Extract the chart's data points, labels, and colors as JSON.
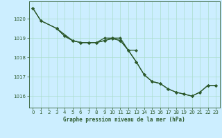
{
  "title": "Graphe pression niveau de la mer (hPa)",
  "background_color": "#cceeff",
  "grid_color": "#aaddcc",
  "line_color": "#2d5a2d",
  "xlim": [
    -0.5,
    23.5
  ],
  "ylim": [
    1015.4,
    1020.9
  ],
  "yticks": [
    1016,
    1017,
    1018,
    1019,
    1020
  ],
  "xticks": [
    0,
    1,
    2,
    3,
    4,
    5,
    6,
    7,
    8,
    9,
    10,
    11,
    12,
    13,
    14,
    15,
    16,
    17,
    18,
    19,
    20,
    21,
    22,
    23
  ],
  "line1_x": [
    0,
    1,
    3,
    4,
    5,
    6,
    7,
    8,
    9,
    10,
    11,
    12,
    13,
    14,
    15,
    16,
    17,
    18,
    19,
    20,
    21,
    22,
    23
  ],
  "line1_y": [
    1020.55,
    1019.9,
    1019.5,
    1019.1,
    1018.87,
    1018.77,
    1018.77,
    1018.77,
    1018.87,
    1018.97,
    1018.87,
    1018.37,
    1017.77,
    1017.1,
    1016.75,
    1016.65,
    1016.37,
    1016.2,
    1016.1,
    1016.0,
    1016.2,
    1016.55,
    1016.55
  ],
  "line2_x": [
    0,
    1,
    3,
    4,
    5,
    6,
    7,
    8,
    9,
    10,
    11,
    12,
    13
  ],
  "line2_y": [
    1020.55,
    1019.9,
    1019.5,
    1019.1,
    1018.87,
    1018.77,
    1018.77,
    1018.77,
    1019.0,
    1019.0,
    1019.0,
    1018.37,
    1018.37
  ],
  "line3_x": [
    3,
    5,
    6,
    7,
    8,
    9,
    10,
    11,
    12,
    13,
    14,
    15,
    16,
    17,
    18,
    19,
    20,
    21,
    22,
    23
  ],
  "line3_y": [
    1019.5,
    1018.87,
    1018.77,
    1018.77,
    1018.77,
    1018.87,
    1019.0,
    1018.87,
    1018.37,
    1017.77,
    1017.1,
    1016.75,
    1016.65,
    1016.37,
    1016.2,
    1016.1,
    1016.0,
    1016.2,
    1016.55,
    1016.55
  ]
}
